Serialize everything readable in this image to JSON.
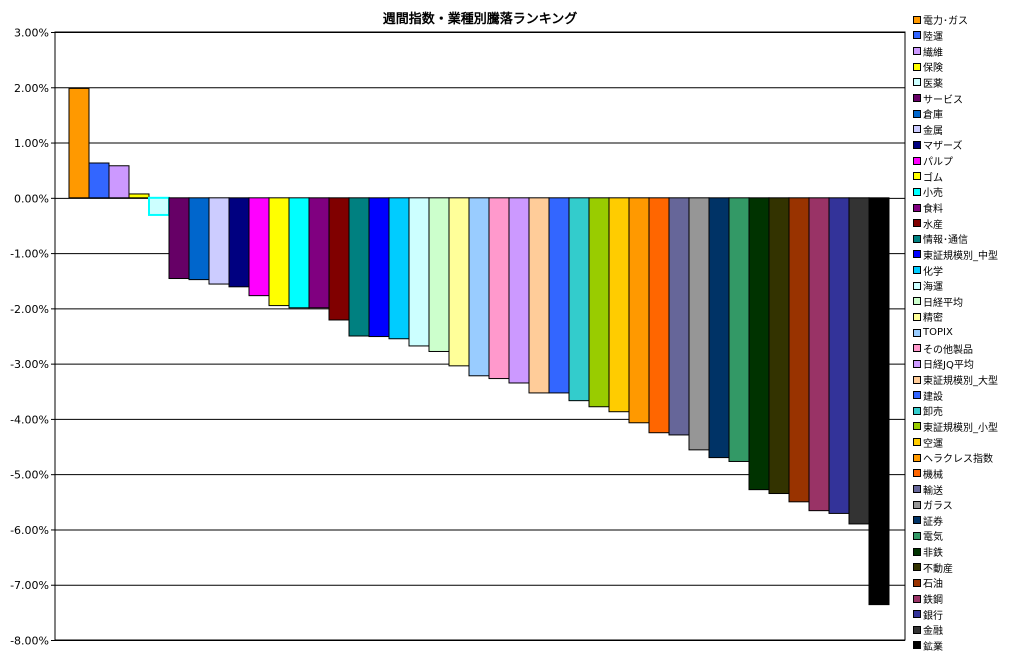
{
  "chart_data": {
    "type": "bar",
    "title": "週間指数・業種別騰落ランキング",
    "ylim": [
      -8,
      3
    ],
    "yticks": [
      "3.00%",
      "2.00%",
      "1.00%",
      "0.00%",
      "-1.00%",
      "-2.00%",
      "-3.00%",
      "-4.00%",
      "-5.00%",
      "-6.00%",
      "-7.00%",
      "-8.00%"
    ],
    "grid": true,
    "legend_position": "right",
    "series": [
      {
        "name": "電力･ガス",
        "value": 1.98,
        "color": "#FF9900"
      },
      {
        "name": "陸運",
        "value": 0.63,
        "color": "#3366FF"
      },
      {
        "name": "繊維",
        "value": 0.58,
        "color": "#CC99FF"
      },
      {
        "name": "保険",
        "value": 0.07,
        "color": "#FFFF00"
      },
      {
        "name": "医薬",
        "value": -0.31,
        "color": "#CCFFFF"
      },
      {
        "name": "サービス",
        "value": -1.46,
        "color": "#660066"
      },
      {
        "name": "倉庫",
        "value": -1.48,
        "color": "#0066CC"
      },
      {
        "name": "金属",
        "value": -1.56,
        "color": "#CCCCFF"
      },
      {
        "name": "マザーズ",
        "value": -1.61,
        "color": "#000080"
      },
      {
        "name": "パルプ",
        "value": -1.77,
        "color": "#FF00FF"
      },
      {
        "name": "ゴム",
        "value": -1.95,
        "color": "#FFFF00"
      },
      {
        "name": "小売",
        "value": -1.99,
        "color": "#00FFFF"
      },
      {
        "name": "食料",
        "value": -1.99,
        "color": "#800080"
      },
      {
        "name": "水産",
        "value": -2.21,
        "color": "#800000"
      },
      {
        "name": "情報･通信",
        "value": -2.5,
        "color": "#008080"
      },
      {
        "name": "東証規模別_中型",
        "value": -2.51,
        "color": "#0000FF"
      },
      {
        "name": "化学",
        "value": -2.55,
        "color": "#00CCFF"
      },
      {
        "name": "海運",
        "value": -2.68,
        "color": "#CCFFFF"
      },
      {
        "name": "日経平均",
        "value": -2.78,
        "color": "#CCFFCC"
      },
      {
        "name": "精密",
        "value": -3.04,
        "color": "#FFFF99"
      },
      {
        "name": "TOPIX",
        "value": -3.22,
        "color": "#99CCFF"
      },
      {
        "name": "その他製品",
        "value": -3.27,
        "color": "#FF99CC"
      },
      {
        "name": "日経JQ平均",
        "value": -3.35,
        "color": "#CC99FF"
      },
      {
        "name": "東証規模別_大型",
        "value": -3.53,
        "color": "#FFCC99"
      },
      {
        "name": "建設",
        "value": -3.53,
        "color": "#3366FF"
      },
      {
        "name": "卸売",
        "value": -3.67,
        "color": "#33CCCC"
      },
      {
        "name": "東証規模別_小型",
        "value": -3.78,
        "color": "#99CC00"
      },
      {
        "name": "空運",
        "value": -3.87,
        "color": "#FFCC00"
      },
      {
        "name": "ヘラクレス指数",
        "value": -4.07,
        "color": "#FF9900"
      },
      {
        "name": "機械",
        "value": -4.25,
        "color": "#FF6600"
      },
      {
        "name": "輸送",
        "value": -4.29,
        "color": "#666699"
      },
      {
        "name": "ガラス",
        "value": -4.56,
        "color": "#969696"
      },
      {
        "name": "証券",
        "value": -4.7,
        "color": "#003366"
      },
      {
        "name": "電気",
        "value": -4.77,
        "color": "#339966"
      },
      {
        "name": "非鉄",
        "value": -5.28,
        "color": "#003300"
      },
      {
        "name": "不動産",
        "value": -5.35,
        "color": "#333300"
      },
      {
        "name": "石油",
        "value": -5.5,
        "color": "#993300"
      },
      {
        "name": "鉄鋼",
        "value": -5.66,
        "color": "#993366"
      },
      {
        "name": "銀行",
        "value": -5.71,
        "color": "#333399"
      },
      {
        "name": "金融",
        "value": -5.9,
        "color": "#333333"
      },
      {
        "name": "鉱業",
        "value": -7.36,
        "color": "#000000"
      }
    ]
  }
}
